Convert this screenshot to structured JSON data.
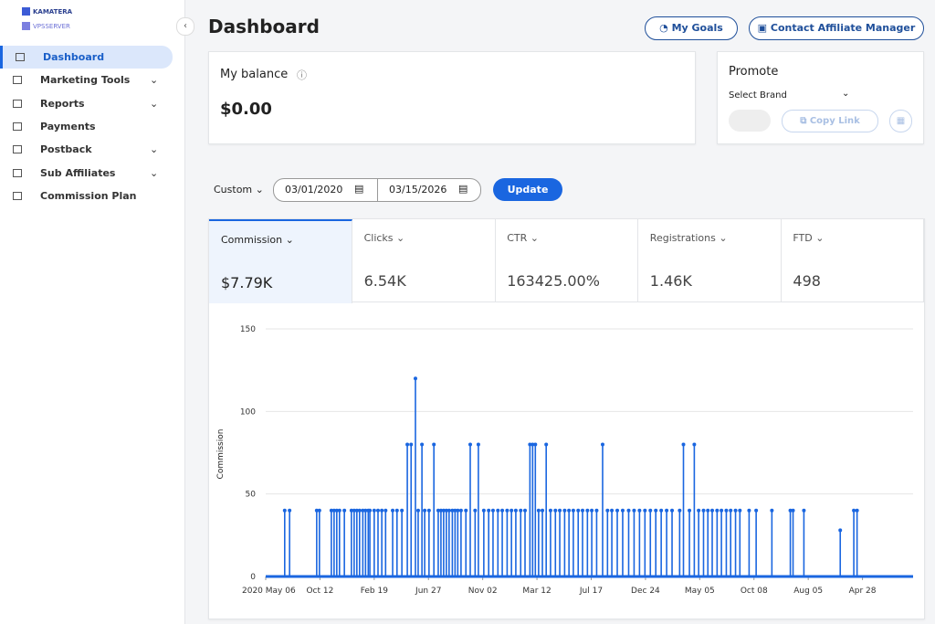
{
  "sidebar": {
    "logo": [
      "KAMATERA",
      "VPSSERVER"
    ],
    "nav": [
      "Dashboard",
      "Marketing Tools",
      "Reports",
      "Payments",
      "Postback",
      "Sub Affiliates",
      "Commission Plan"
    ]
  },
  "header": {
    "title": "Dashboard",
    "buttons": [
      "My Goals",
      "Contact Affiliate Manager"
    ]
  },
  "balance": {
    "label": "My balance",
    "value": "$0.00"
  },
  "promote": {
    "title": "Promote",
    "select": "Select Brand",
    "copy": "Copy Link"
  },
  "filters": {
    "range": "Custom",
    "start": "03/01/2020",
    "end": "03/15/2026",
    "update": "Update"
  },
  "metrics": [
    {
      "label": "Commission",
      "value": "$7.79K"
    },
    {
      "label": "Clicks",
      "value": "6.54K"
    },
    {
      "label": "CTR",
      "value": "163425.00%"
    },
    {
      "label": "Registrations",
      "value": "1.46K"
    },
    {
      "label": "FTD",
      "value": "498"
    }
  ],
  "chart_data": {
    "type": "line",
    "y_label": "Commission",
    "color": "#1a66e0",
    "grid": true,
    "x": [
      35,
      44,
      94,
      99,
      121,
      126,
      131,
      136,
      145,
      158,
      163,
      168,
      173,
      179,
      184,
      189,
      192,
      200,
      207,
      214,
      221,
      234,
      242,
      251,
      261,
      268,
      276,
      281,
      288,
      293,
      301,
      310,
      318,
      323,
      328,
      333,
      338,
      344,
      349,
      354,
      360,
      369,
      377,
      386,
      392,
      402,
      411,
      419,
      428,
      436,
      445,
      453,
      461,
      470,
      478,
      487,
      492,
      497,
      503,
      510,
      517,
      525,
      534,
      542,
      551,
      559,
      567,
      576,
      584,
      593,
      601,
      610,
      621,
      630,
      638,
      648,
      658,
      669,
      679,
      689,
      699,
      709,
      719,
      729,
      739,
      749,
      763,
      770,
      781,
      790,
      798,
      807,
      815,
      823,
      832,
      840,
      849,
      857,
      866,
      874,
      891,
      904,
      933,
      967,
      972,
      992,
      1059,
      1084,
      1090
    ],
    "values": [
      40,
      40,
      40,
      40,
      40,
      40,
      40,
      40,
      40,
      40,
      40,
      40,
      40,
      40,
      40,
      40,
      40,
      40,
      40,
      40,
      40,
      40,
      40,
      40,
      80,
      80,
      120,
      40,
      80,
      40,
      40,
      80,
      40,
      40,
      40,
      40,
      40,
      40,
      40,
      40,
      40,
      40,
      80,
      40,
      80,
      40,
      40,
      40,
      40,
      40,
      40,
      40,
      40,
      40,
      40,
      80,
      80,
      80,
      40,
      40,
      80,
      40,
      40,
      40,
      40,
      40,
      40,
      40,
      40,
      40,
      40,
      40,
      80,
      40,
      40,
      40,
      40,
      40,
      40,
      40,
      40,
      40,
      40,
      40,
      40,
      40,
      40,
      80,
      40,
      80,
      40,
      40,
      40,
      40,
      40,
      40,
      40,
      40,
      40,
      40,
      40,
      40,
      40,
      40,
      40,
      40,
      28,
      40,
      40
    ],
    "xlim": [
      0,
      1200
    ],
    "xticks": [
      {
        "value": 0,
        "label": "2020 May 06"
      },
      {
        "value": 100,
        "label": "Oct 12"
      },
      {
        "value": 200,
        "label": "Feb 19"
      },
      {
        "value": 300,
        "label": "Jun 27"
      },
      {
        "value": 400,
        "label": "Nov 02"
      },
      {
        "value": 500,
        "label": "Mar 12"
      },
      {
        "value": 600,
        "label": "Jul 17"
      },
      {
        "value": 700,
        "label": "Dec 24"
      },
      {
        "value": 800,
        "label": "May 05"
      },
      {
        "value": 900,
        "label": "Oct 08"
      },
      {
        "value": 1000,
        "label": "Aug 05"
      },
      {
        "value": 1100,
        "label": "Apr 28"
      }
    ],
    "ylim": [
      0,
      150
    ],
    "yticks": [
      0,
      50,
      100,
      150
    ]
  }
}
